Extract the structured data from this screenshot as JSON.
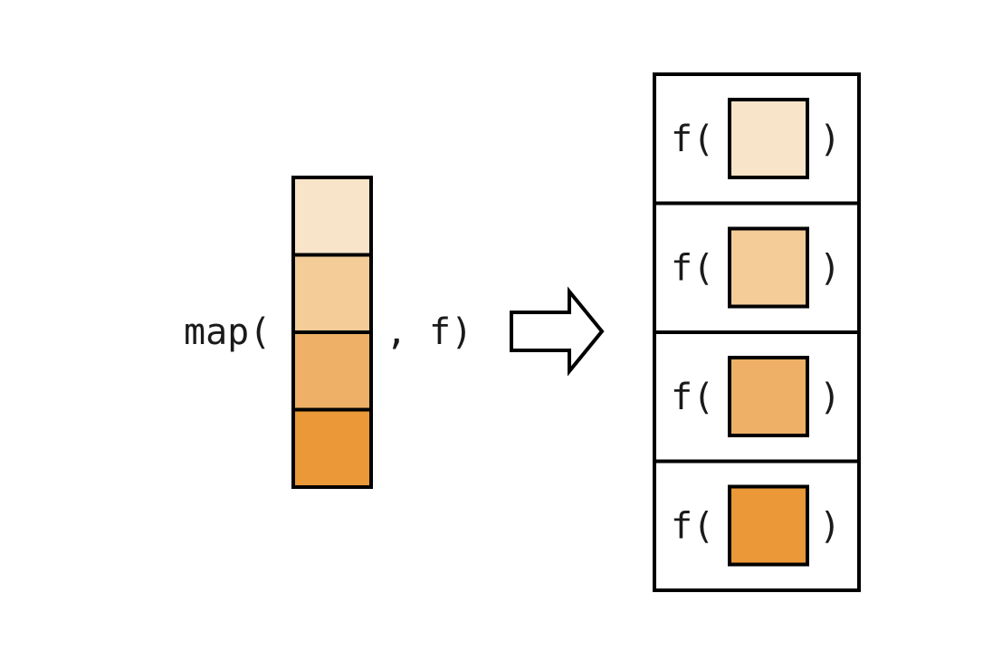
{
  "map_call": {
    "open": "map(",
    "separator": ",",
    "close": "f)"
  },
  "input_vector": {
    "cells": [
      {
        "color": "#f8e4c9"
      },
      {
        "color": "#f3cc98"
      },
      {
        "color": "#edb066"
      },
      {
        "color": "#ea9838"
      }
    ]
  },
  "arrow": {
    "icon": "right-arrow-icon"
  },
  "output_list": {
    "items": [
      {
        "open": "f(",
        "close": ")",
        "color": "#f8e4c9"
      },
      {
        "open": "f(",
        "close": ")",
        "color": "#f3cc98"
      },
      {
        "open": "f(",
        "close": ")",
        "color": "#edb066"
      },
      {
        "open": "f(",
        "close": ")",
        "color": "#ea9838"
      }
    ]
  }
}
